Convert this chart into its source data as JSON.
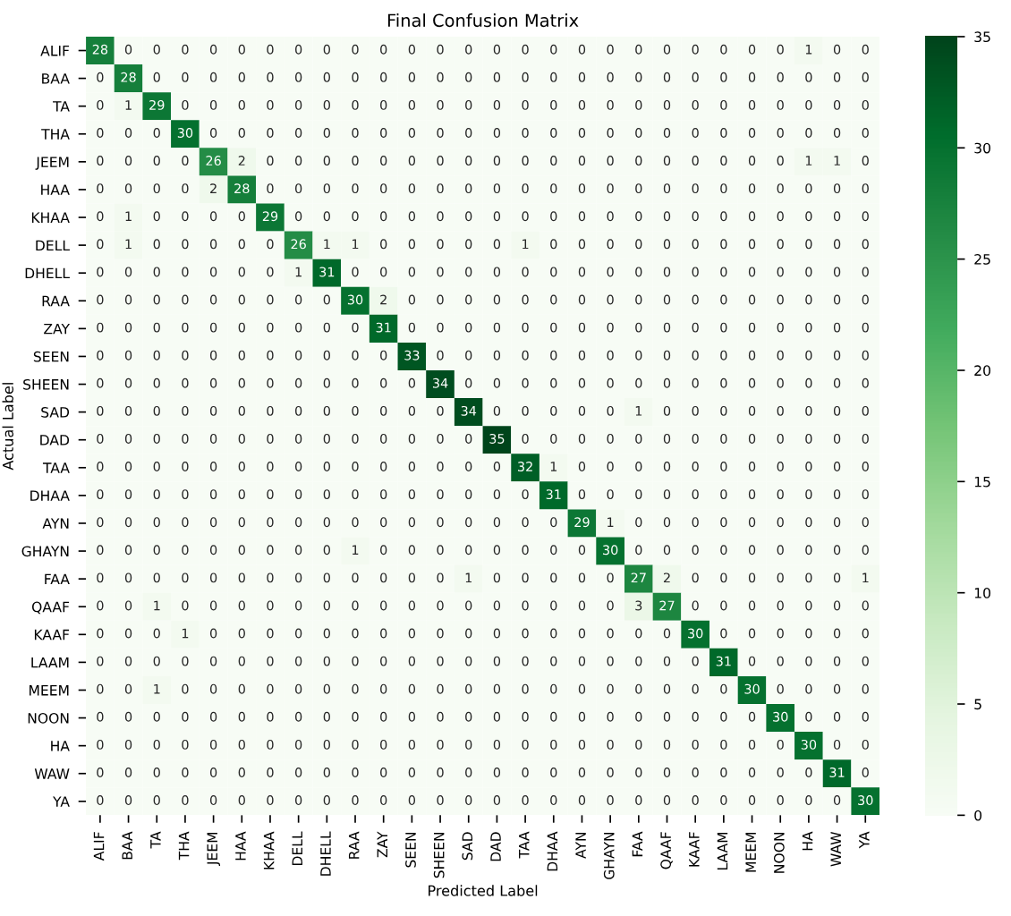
{
  "chart_data": {
    "type": "heatmap",
    "title": "Final Confusion Matrix",
    "xlabel": "Predicted Label",
    "ylabel": "Actual Label",
    "categories": [
      "ALIF",
      "BAA",
      "TA",
      "THA",
      "JEEM",
      "HAA",
      "KHAA",
      "DELL",
      "DHELL",
      "RAA",
      "ZAY",
      "SEEN",
      "SHEEN",
      "SAD",
      "DAD",
      "TAA",
      "DHAA",
      "AYN",
      "GHAYN",
      "FAA",
      "QAAF",
      "KAAF",
      "LAAM",
      "MEEM",
      "NOON",
      "HA",
      "WAW",
      "YA"
    ],
    "y_categories": [
      "ALIF",
      "BAA",
      "TA",
      "THA",
      "JEEM",
      "HAA",
      "KHAA",
      "DELL",
      "DHELL",
      "RAA",
      "ZAY",
      "SEEN",
      "SHEEN",
      "SAD",
      "DAD",
      "TAA",
      "DHAA",
      "AYN",
      "GHAYN",
      "FAA",
      "QAAF",
      "KAAF",
      "LAAM",
      "MEEM",
      "NOON",
      "HA",
      "WAW",
      "YA"
    ],
    "cells": [
      [
        28,
        0,
        0,
        0,
        0,
        0,
        0,
        0,
        0,
        0,
        0,
        0,
        0,
        0,
        0,
        0,
        0,
        0,
        0,
        0,
        0,
        0,
        0,
        0,
        0,
        1,
        0,
        0
      ],
      [
        0,
        28,
        0,
        0,
        0,
        0,
        0,
        0,
        0,
        0,
        0,
        0,
        0,
        0,
        0,
        0,
        0,
        0,
        0,
        0,
        0,
        0,
        0,
        0,
        0,
        0,
        0,
        0
      ],
      [
        0,
        1,
        29,
        0,
        0,
        0,
        0,
        0,
        0,
        0,
        0,
        0,
        0,
        0,
        0,
        0,
        0,
        0,
        0,
        0,
        0,
        0,
        0,
        0,
        0,
        0,
        0,
        0
      ],
      [
        0,
        0,
        0,
        30,
        0,
        0,
        0,
        0,
        0,
        0,
        0,
        0,
        0,
        0,
        0,
        0,
        0,
        0,
        0,
        0,
        0,
        0,
        0,
        0,
        0,
        0,
        0,
        0
      ],
      [
        0,
        0,
        0,
        0,
        26,
        2,
        0,
        0,
        0,
        0,
        0,
        0,
        0,
        0,
        0,
        0,
        0,
        0,
        0,
        0,
        0,
        0,
        0,
        0,
        0,
        1,
        1,
        0
      ],
      [
        0,
        0,
        0,
        0,
        2,
        28,
        0,
        0,
        0,
        0,
        0,
        0,
        0,
        0,
        0,
        0,
        0,
        0,
        0,
        0,
        0,
        0,
        0,
        0,
        0,
        0,
        0,
        0
      ],
      [
        0,
        1,
        0,
        0,
        0,
        0,
        29,
        0,
        0,
        0,
        0,
        0,
        0,
        0,
        0,
        0,
        0,
        0,
        0,
        0,
        0,
        0,
        0,
        0,
        0,
        0,
        0,
        0
      ],
      [
        0,
        1,
        0,
        0,
        0,
        0,
        0,
        26,
        1,
        1,
        0,
        0,
        0,
        0,
        0,
        1,
        0,
        0,
        0,
        0,
        0,
        0,
        0,
        0,
        0,
        0,
        0,
        0
      ],
      [
        0,
        0,
        0,
        0,
        0,
        0,
        0,
        1,
        31,
        0,
        0,
        0,
        0,
        0,
        0,
        0,
        0,
        0,
        0,
        0,
        0,
        0,
        0,
        0,
        0,
        0,
        0,
        0
      ],
      [
        0,
        0,
        0,
        0,
        0,
        0,
        0,
        0,
        0,
        30,
        2,
        0,
        0,
        0,
        0,
        0,
        0,
        0,
        0,
        0,
        0,
        0,
        0,
        0,
        0,
        0,
        0,
        0
      ],
      [
        0,
        0,
        0,
        0,
        0,
        0,
        0,
        0,
        0,
        0,
        31,
        0,
        0,
        0,
        0,
        0,
        0,
        0,
        0,
        0,
        0,
        0,
        0,
        0,
        0,
        0,
        0,
        0
      ],
      [
        0,
        0,
        0,
        0,
        0,
        0,
        0,
        0,
        0,
        0,
        0,
        33,
        0,
        0,
        0,
        0,
        0,
        0,
        0,
        0,
        0,
        0,
        0,
        0,
        0,
        0,
        0,
        0
      ],
      [
        0,
        0,
        0,
        0,
        0,
        0,
        0,
        0,
        0,
        0,
        0,
        0,
        34,
        0,
        0,
        0,
        0,
        0,
        0,
        0,
        0,
        0,
        0,
        0,
        0,
        0,
        0,
        0
      ],
      [
        0,
        0,
        0,
        0,
        0,
        0,
        0,
        0,
        0,
        0,
        0,
        0,
        0,
        34,
        0,
        0,
        0,
        0,
        0,
        1,
        0,
        0,
        0,
        0,
        0,
        0,
        0,
        0
      ],
      [
        0,
        0,
        0,
        0,
        0,
        0,
        0,
        0,
        0,
        0,
        0,
        0,
        0,
        0,
        35,
        0,
        0,
        0,
        0,
        0,
        0,
        0,
        0,
        0,
        0,
        0,
        0,
        0
      ],
      [
        0,
        0,
        0,
        0,
        0,
        0,
        0,
        0,
        0,
        0,
        0,
        0,
        0,
        0,
        0,
        32,
        1,
        0,
        0,
        0,
        0,
        0,
        0,
        0,
        0,
        0,
        0,
        0
      ],
      [
        0,
        0,
        0,
        0,
        0,
        0,
        0,
        0,
        0,
        0,
        0,
        0,
        0,
        0,
        0,
        0,
        31,
        0,
        0,
        0,
        0,
        0,
        0,
        0,
        0,
        0,
        0,
        0
      ],
      [
        0,
        0,
        0,
        0,
        0,
        0,
        0,
        0,
        0,
        0,
        0,
        0,
        0,
        0,
        0,
        0,
        0,
        29,
        1,
        0,
        0,
        0,
        0,
        0,
        0,
        0,
        0,
        0
      ],
      [
        0,
        0,
        0,
        0,
        0,
        0,
        0,
        0,
        0,
        1,
        0,
        0,
        0,
        0,
        0,
        0,
        0,
        0,
        30,
        0,
        0,
        0,
        0,
        0,
        0,
        0,
        0,
        0
      ],
      [
        0,
        0,
        0,
        0,
        0,
        0,
        0,
        0,
        0,
        0,
        0,
        0,
        0,
        1,
        0,
        0,
        0,
        0,
        0,
        27,
        2,
        0,
        0,
        0,
        0,
        0,
        0,
        1
      ],
      [
        0,
        0,
        1,
        0,
        0,
        0,
        0,
        0,
        0,
        0,
        0,
        0,
        0,
        0,
        0,
        0,
        0,
        0,
        0,
        3,
        27,
        0,
        0,
        0,
        0,
        0,
        0,
        0
      ],
      [
        0,
        0,
        0,
        1,
        0,
        0,
        0,
        0,
        0,
        0,
        0,
        0,
        0,
        0,
        0,
        0,
        0,
        0,
        0,
        0,
        0,
        30,
        0,
        0,
        0,
        0,
        0,
        0
      ],
      [
        0,
        0,
        0,
        0,
        0,
        0,
        0,
        0,
        0,
        0,
        0,
        0,
        0,
        0,
        0,
        0,
        0,
        0,
        0,
        0,
        0,
        0,
        31,
        0,
        0,
        0,
        0,
        0
      ],
      [
        0,
        0,
        1,
        0,
        0,
        0,
        0,
        0,
        0,
        0,
        0,
        0,
        0,
        0,
        0,
        0,
        0,
        0,
        0,
        0,
        0,
        0,
        0,
        30,
        0,
        0,
        0,
        0
      ],
      [
        0,
        0,
        0,
        0,
        0,
        0,
        0,
        0,
        0,
        0,
        0,
        0,
        0,
        0,
        0,
        0,
        0,
        0,
        0,
        0,
        0,
        0,
        0,
        0,
        30,
        0,
        0,
        0
      ],
      [
        0,
        0,
        0,
        0,
        0,
        0,
        0,
        0,
        0,
        0,
        0,
        0,
        0,
        0,
        0,
        0,
        0,
        0,
        0,
        0,
        0,
        0,
        0,
        0,
        0,
        30,
        0,
        0
      ],
      [
        0,
        0,
        0,
        0,
        0,
        0,
        0,
        0,
        0,
        0,
        0,
        0,
        0,
        0,
        0,
        0,
        0,
        0,
        0,
        0,
        0,
        0,
        0,
        0,
        0,
        0,
        31,
        0
      ],
      [
        0,
        0,
        0,
        0,
        0,
        0,
        0,
        0,
        0,
        0,
        0,
        0,
        0,
        0,
        0,
        0,
        0,
        0,
        0,
        0,
        0,
        0,
        0,
        0,
        0,
        0,
        0,
        30
      ]
    ],
    "clim": [
      0,
      35
    ],
    "cticks": [
      0,
      5,
      10,
      15,
      20,
      25,
      30,
      35
    ],
    "data_labels": true
  }
}
